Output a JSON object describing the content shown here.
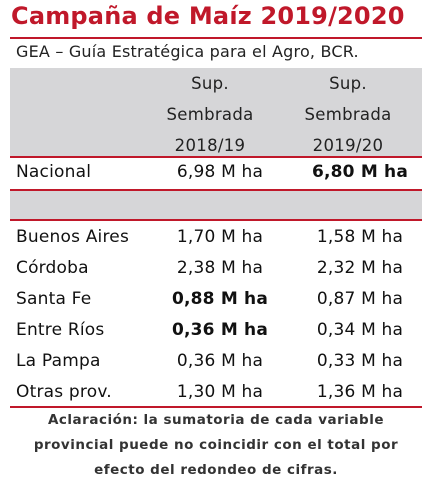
{
  "title": "Campaña de Maíz 2019/2020",
  "subtitle": "GEA – Guía Estratégica para el Agro, BCR.",
  "header": {
    "col1": [
      "Sup.",
      "Sembrada",
      "2018/19"
    ],
    "col2": [
      "Sup.",
      "Sembrada",
      "2019/20"
    ]
  },
  "national": {
    "name": "Nacional",
    "v1": "6,98 M ha",
    "v2": "6,80 M ha"
  },
  "provinces": [
    {
      "name": "Buenos Aires",
      "v1": "1,70 M ha",
      "v2": "1,58 M ha"
    },
    {
      "name": "Córdoba",
      "v1": "2,38 M ha",
      "v2": "2,32 M ha"
    },
    {
      "name": "Santa Fe",
      "v1": "0,88 M ha",
      "v2": "0,87 M ha"
    },
    {
      "name": "Entre Ríos",
      "v1": "0,36 M ha",
      "v2": "0,34 M ha"
    },
    {
      "name": "La Pampa",
      "v1": "0,36 M ha",
      "v2": "0,33 M ha"
    },
    {
      "name": "Otras prov.",
      "v1": "1,30 M ha",
      "v2": "1,36 M ha"
    }
  ],
  "note": [
    "Aclaración: la sumatoria de cada variable",
    "provincial puede no coincidir con el total por",
    "efecto del redondeo de cifras."
  ],
  "colors": {
    "accent": "#c0182a",
    "band": "#d6d6d8"
  }
}
